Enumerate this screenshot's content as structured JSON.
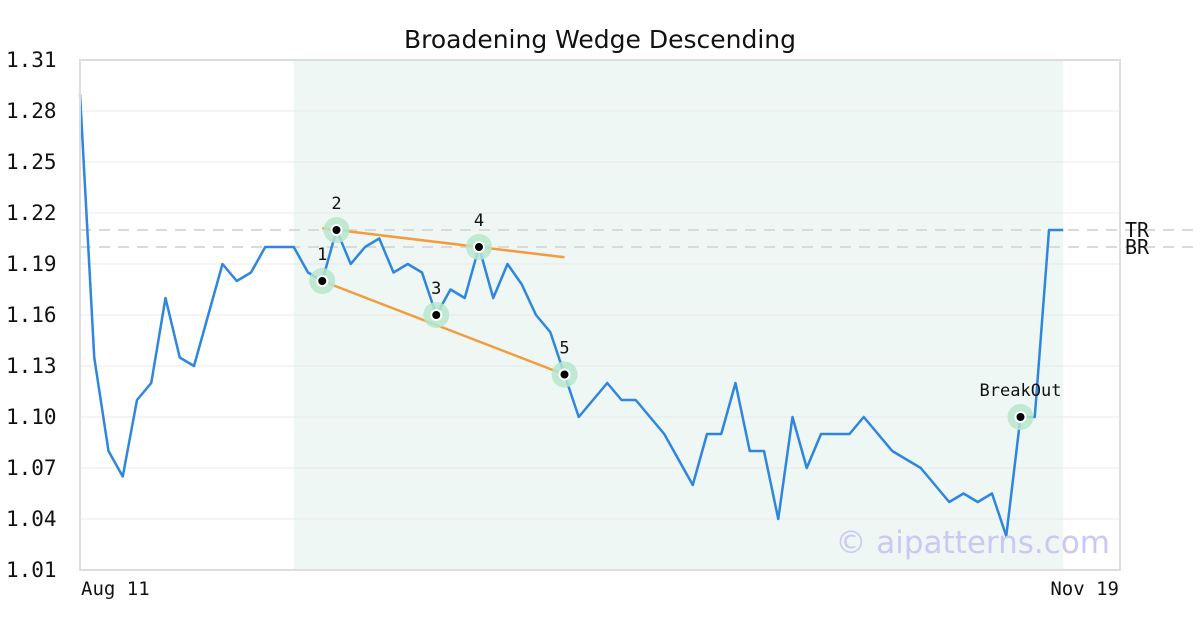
{
  "chart_data": {
    "type": "line",
    "title": "Broadening Wedge Descending",
    "xlabel": "",
    "ylabel": "",
    "ylim": [
      1.01,
      1.31
    ],
    "yticks": [
      "1.01",
      "1.04",
      "1.07",
      "1.10",
      "1.13",
      "1.16",
      "1.19",
      "1.22",
      "1.25",
      "1.28",
      "1.31"
    ],
    "xtick_labels": [
      "Aug 11",
      "Nov 19"
    ],
    "grid": true,
    "series": [
      {
        "color": "#2e86de",
        "values": [
          1.29,
          1.135,
          1.08,
          1.065,
          1.11,
          1.12,
          1.17,
          1.135,
          1.13,
          1.16,
          1.19,
          1.18,
          1.185,
          1.2,
          1.2,
          1.2,
          1.185,
          1.18,
          1.21,
          1.19,
          1.2,
          1.205,
          1.185,
          1.19,
          1.185,
          1.16,
          1.175,
          1.17,
          1.2,
          1.17,
          1.19,
          1.178,
          1.16,
          1.15,
          1.125,
          1.1,
          1.11,
          1.12,
          1.11,
          1.11,
          1.1,
          1.09,
          1.075,
          1.06,
          1.09,
          1.09,
          1.12,
          1.08,
          1.08,
          1.04,
          1.1,
          1.07,
          1.09,
          1.09,
          1.09,
          1.1,
          1.09,
          1.08,
          1.075,
          1.07,
          1.06,
          1.05,
          1.055,
          1.05,
          1.055,
          1.03,
          1.1,
          1.1,
          1.21,
          1.21
        ]
      }
    ],
    "pattern_region": {
      "start_index": 15,
      "end_index": 69,
      "color": "#eef7f3"
    },
    "pattern_points": [
      {
        "label": "1",
        "index": 17,
        "value": 1.18
      },
      {
        "label": "2",
        "index": 18,
        "value": 1.21
      },
      {
        "label": "3",
        "index": 25,
        "value": 1.16
      },
      {
        "label": "4",
        "index": 28,
        "value": 1.2
      },
      {
        "label": "5",
        "index": 34,
        "value": 1.125
      },
      {
        "label": "BreakOut",
        "index": 66,
        "value": 1.1
      }
    ],
    "trend_lines": [
      {
        "from_index": 17,
        "from_value": 1.18,
        "to_index": 34,
        "to_value": 1.125,
        "color": "#f39c3d"
      },
      {
        "from_index": 17,
        "from_value": 1.211,
        "to_index": 34,
        "to_value": 1.194,
        "color": "#f39c3d"
      }
    ],
    "reference_lines": [
      {
        "label": "TR",
        "value": 1.21
      },
      {
        "label": "BR",
        "value": 1.2
      }
    ]
  },
  "watermark": "© aipatterns.com"
}
